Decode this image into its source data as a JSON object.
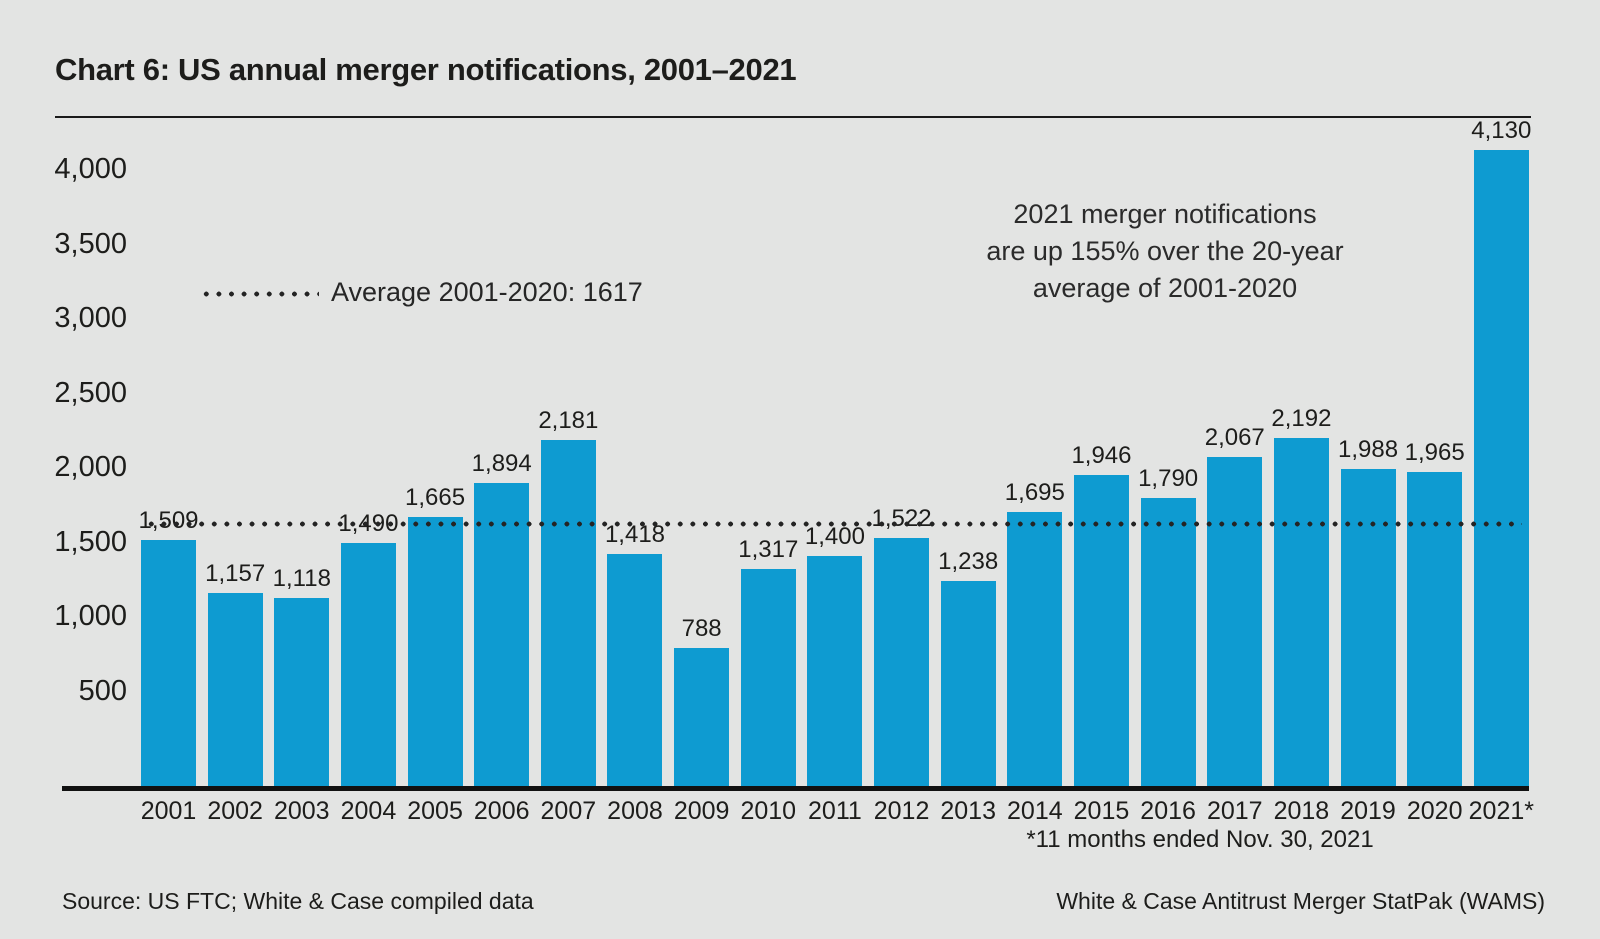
{
  "title": "Chart 6: US annual merger notifications, 2001–2021",
  "chart_data": {
    "type": "bar",
    "categories": [
      "2001",
      "2002",
      "2003",
      "2004",
      "2005",
      "2006",
      "2007",
      "2008",
      "2009",
      "2010",
      "2011",
      "2012",
      "2013",
      "2014",
      "2015",
      "2016",
      "2017",
      "2018",
      "2019",
      "2020",
      "2021*"
    ],
    "values": [
      1509,
      1157,
      1118,
      1490,
      1665,
      1894,
      2181,
      1418,
      788,
      1317,
      1400,
      1522,
      1238,
      1695,
      1946,
      1790,
      2067,
      2192,
      1988,
      1965,
      4130
    ],
    "bar_labels": [
      "1,509",
      "1,157",
      "1,118",
      "1,490",
      "1,665",
      "1,894",
      "2,181",
      "1,418",
      "788",
      "1,317",
      "1,400",
      "1,522",
      "1,238",
      "1,695",
      "1,946",
      "1,790",
      "2,067",
      "2,192",
      "1,988",
      "1,965",
      "4,130"
    ],
    "yticks": [
      "4,000",
      "3,500",
      "3,000",
      "2,500",
      "2,000",
      "1,500",
      "1,000",
      "500"
    ],
    "ytick_values": [
      4000,
      3500,
      3000,
      2500,
      2000,
      1500,
      1000,
      500
    ],
    "ylim": [
      0,
      4130
    ],
    "grid": false,
    "average_line": {
      "value": 1617,
      "label": "Average 2001-2020: 1617"
    },
    "legend_position": "upper-left-inside",
    "bar_color": "#0e9bd1"
  },
  "annotation": {
    "lines": [
      "2021 merger notifications",
      "are up 155% over the 20-year",
      "average of 2001-2020"
    ]
  },
  "footnote": "*11 months ended Nov. 30, 2021",
  "footer": {
    "source": "Source: US FTC; White & Case compiled data",
    "brand": "White & Case Antitrust Merger StatPak (WAMS)"
  },
  "colors": {
    "background": "#e3e4e3",
    "bar": "#0e9bd1",
    "text": "#1d1d1b",
    "axis": "#111111",
    "dotted": "#242424"
  }
}
